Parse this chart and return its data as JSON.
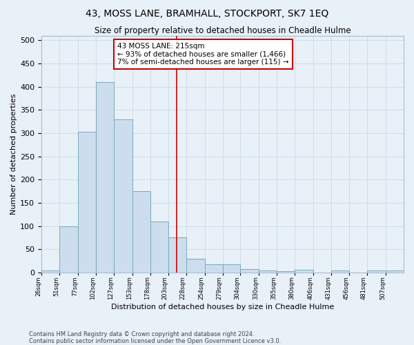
{
  "title": "43, MOSS LANE, BRAMHALL, STOCKPORT, SK7 1EQ",
  "subtitle": "Size of property relative to detached houses in Cheadle Hulme",
  "xlabel": "Distribution of detached houses by size in Cheadle Hulme",
  "ylabel": "Number of detached properties",
  "bar_color": "#ccdded",
  "bar_edge_color": "#7aaabb",
  "vline_x": 215,
  "vline_color": "#cc0000",
  "annotation_text": "43 MOSS LANE: 215sqm\n← 93% of detached houses are smaller (1,466)\n7% of semi-detached houses are larger (115) →",
  "annotation_box_color": "#ffffff",
  "annotation_box_edge": "#cc0000",
  "bin_edges": [
    26,
    51,
    77,
    102,
    127,
    153,
    178,
    203,
    228,
    254,
    279,
    304,
    330,
    355,
    380,
    406,
    431,
    456,
    481,
    507,
    532
  ],
  "bar_heights": [
    4,
    100,
    303,
    410,
    330,
    175,
    110,
    76,
    30,
    18,
    18,
    7,
    4,
    3,
    6,
    0,
    4,
    0,
    4,
    4
  ],
  "ylim": [
    0,
    510
  ],
  "yticks": [
    0,
    50,
    100,
    150,
    200,
    250,
    300,
    350,
    400,
    450,
    500
  ],
  "grid_color": "#d0dce8",
  "background_color": "#e8f0f8",
  "footer_line1": "Contains HM Land Registry data © Crown copyright and database right 2024.",
  "footer_line2": "Contains public sector information licensed under the Open Government Licence v3.0."
}
